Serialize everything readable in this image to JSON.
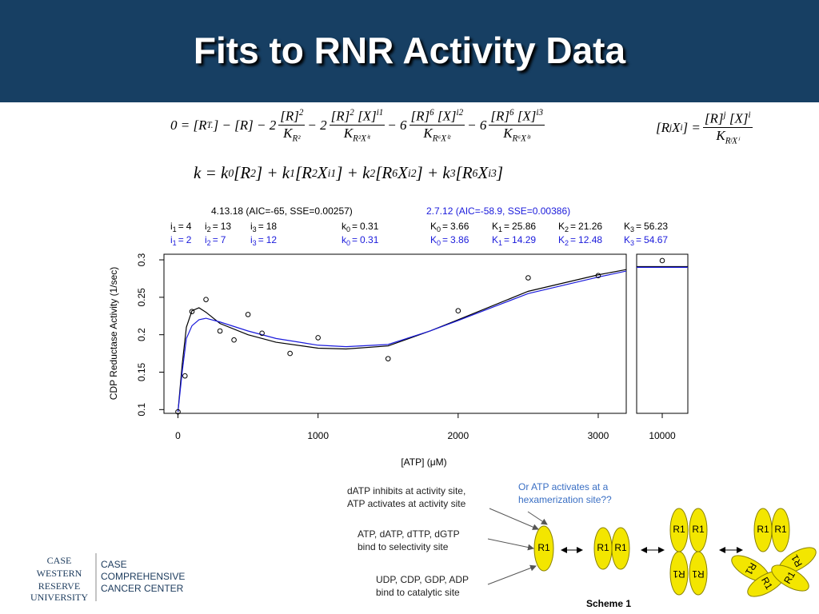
{
  "slide": {
    "title": "Fits to RNR Activity Data",
    "equations": [
      [
        "0 = [R",
        {
          "sub": "T."
        },
        "] − [R] − 2",
        {
          "num": [
            "[R]",
            {
              "sup": "2"
            }
          ],
          "den": [
            "K",
            {
              "sub": "R²"
            }
          ]
        },
        " − 2",
        {
          "num": [
            "[R]",
            {
              "sup": "2"
            },
            " [X]",
            {
              "sup": "i1"
            }
          ],
          "den": [
            "K",
            {
              "sub": "R²Xⁱ¹"
            }
          ]
        },
        " − 6",
        {
          "num": [
            "[R]",
            {
              "sup": "6"
            },
            " [X]",
            {
              "sup": "i2"
            }
          ],
          "den": [
            "K",
            {
              "sub": "R⁶Xⁱ²"
            }
          ]
        },
        " − 6",
        {
          "num": [
            "[R]",
            {
              "sup": "6"
            },
            " [X]",
            {
              "sup": "i3"
            }
          ],
          "den": [
            "K",
            {
              "sub": "R⁶Xⁱ³"
            }
          ]
        }
      ],
      [
        "[R",
        {
          "sup": "j"
        },
        " X",
        {
          "sup": "i"
        },
        "] = ",
        {
          "num": [
            "[R]",
            {
              "sup": "j"
            },
            " [X]",
            {
              "sup": "i"
            }
          ],
          "den": [
            "K",
            {
              "sub": "RʲXⁱ"
            }
          ]
        }
      ],
      [
        "k = k",
        {
          "sub": "0"
        },
        "[R",
        {
          "sup": "2"
        },
        "] + k",
        {
          "sub": "1"
        },
        "[R",
        {
          "sup": "2"
        },
        "X",
        {
          "sup": "i1"
        },
        "] + k",
        {
          "sub": "2"
        },
        "[R",
        {
          "sup": "6"
        },
        "X",
        {
          "sup": "i2"
        },
        "] + k",
        {
          "sub": "3"
        },
        "[R",
        {
          "sup": "6"
        },
        "X",
        {
          "sup": "i3"
        },
        "]"
      ]
    ],
    "scheme": {
      "annotations": [
        {
          "lines": [
            "dATP inhibits at activity site,",
            "ATP activates at activity site"
          ]
        },
        {
          "lines": [
            "Or ATP activates at a",
            "hexamerization site??"
          ]
        },
        {
          "lines": [
            "ATP, dATP, dTTP, dGTP",
            "bind to selectivity site"
          ]
        },
        {
          "lines": [
            "UDP, CDP, GDP, ADP",
            "bind to catalytic site"
          ]
        }
      ],
      "subunit_label": "R1",
      "caption": "Scheme 1"
    },
    "logo": {
      "university": [
        "CASE",
        "WESTERN",
        "RESERVE",
        "UNIVERSITY"
      ],
      "center": [
        "CASE",
        "COMPREHENSIVE",
        "CANCER CENTER"
      ]
    }
  },
  "chart_data": {
    "type": "scatter",
    "xlabel": "[ATP] (μM)",
    "ylabel": "CDP Reductase Activity (1/sec)",
    "x": [
      0,
      50,
      100,
      200,
      300,
      400,
      500,
      600,
      800,
      1000,
      1500,
      2000,
      2500,
      3000,
      10000
    ],
    "values": [
      0.097,
      0.145,
      0.231,
      0.247,
      0.205,
      0.193,
      0.227,
      0.202,
      0.175,
      0.196,
      0.168,
      0.232,
      0.276,
      0.279,
      0.299
    ],
    "color": "#000000",
    "ylim": [
      0.095,
      0.3075
    ],
    "yticks": [
      0.1,
      0.15,
      0.2,
      0.25,
      0.3
    ],
    "panels": [
      {
        "xlim": [
          -100,
          3200
        ],
        "xticks": [
          0,
          1000,
          2000,
          3000
        ]
      },
      {
        "xlim": [
          9800,
          10200
        ],
        "xticks": [
          10000
        ]
      }
    ],
    "relation": "=",
    "series": [
      {
        "name": "4.13.18 (AIC=-65, SSE=0.00257)",
        "color": "#000000",
        "x": [
          0,
          30,
          60,
          100,
          150,
          200,
          300,
          500,
          700,
          1000,
          1200,
          1500,
          1800,
          2000,
          2500,
          3000,
          3200,
          9800,
          10000,
          10200
        ],
        "values": [
          0.097,
          0.16,
          0.21,
          0.232,
          0.236,
          0.23,
          0.215,
          0.2,
          0.19,
          0.182,
          0.181,
          0.185,
          0.205,
          0.22,
          0.258,
          0.28,
          0.287,
          0.291,
          0.291,
          0.291
        ],
        "params": [
          {
            "symbol": "i",
            "sub": "1",
            "value": "4"
          },
          {
            "symbol": "i",
            "sub": "2",
            "value": "13"
          },
          {
            "symbol": "i",
            "sub": "3",
            "value": "18"
          },
          {
            "symbol": "k",
            "sub": "0",
            "value": "0.31"
          },
          {
            "symbol": "K",
            "sub": "0",
            "value": "3.66"
          },
          {
            "symbol": "K",
            "sub": "1",
            "value": "25.86"
          },
          {
            "symbol": "K",
            "sub": "2",
            "value": "21.26"
          },
          {
            "symbol": "K",
            "sub": "3",
            "value": "56.23"
          }
        ]
      },
      {
        "name": "2.7.12 (AIC=-58.9, SSE=0.00386)",
        "color": "#1a1adb",
        "x": [
          0,
          30,
          60,
          100,
          150,
          200,
          300,
          500,
          700,
          1000,
          1200,
          1500,
          1800,
          2000,
          2500,
          3000,
          3200,
          9800,
          10000,
          10200
        ],
        "values": [
          0.097,
          0.15,
          0.195,
          0.212,
          0.22,
          0.222,
          0.217,
          0.205,
          0.195,
          0.186,
          0.184,
          0.187,
          0.205,
          0.219,
          0.255,
          0.277,
          0.285,
          0.29,
          0.29,
          0.29
        ],
        "params": [
          {
            "symbol": "i",
            "sub": "1",
            "value": "2"
          },
          {
            "symbol": "i",
            "sub": "2",
            "value": "7"
          },
          {
            "symbol": "i",
            "sub": "3",
            "value": "12"
          },
          {
            "symbol": "k",
            "sub": "0",
            "value": "0.31"
          },
          {
            "symbol": "K",
            "sub": "0",
            "value": "3.86"
          },
          {
            "symbol": "K",
            "sub": "1",
            "value": "14.29"
          },
          {
            "symbol": "K",
            "sub": "2",
            "value": "12.48"
          },
          {
            "symbol": "K",
            "sub": "3",
            "value": "54.67"
          }
        ]
      }
    ]
  }
}
